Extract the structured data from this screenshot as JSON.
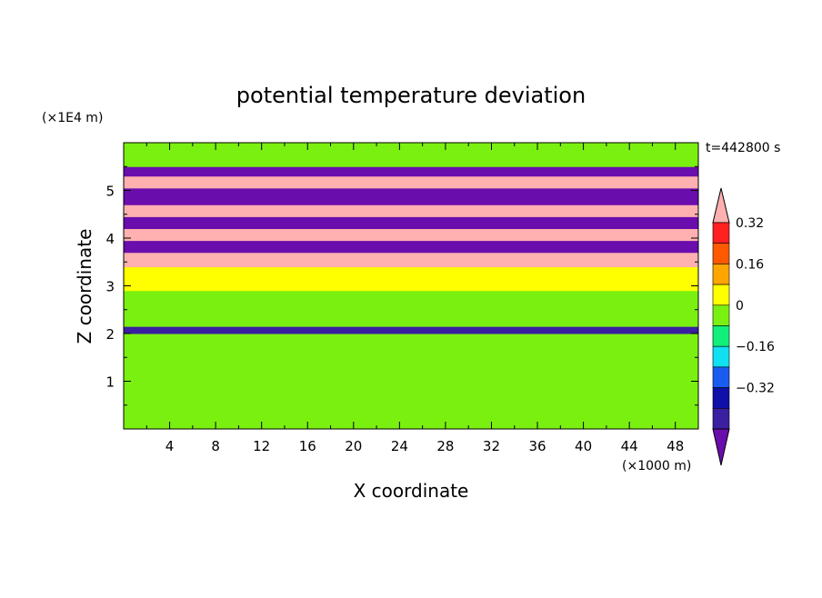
{
  "chart_data": {
    "type": "heatmap",
    "title": "potential temperature deviation",
    "time_label": "t=442800 s",
    "xlabel": "X coordinate",
    "x_unit": "(×1000 m)",
    "ylabel": "Z coordinate",
    "y_unit": "(×1E4 m)",
    "xlim": [
      0,
      50
    ],
    "ylim": [
      0,
      6
    ],
    "x_ticks": [
      "4",
      "8",
      "12",
      "16",
      "20",
      "24",
      "28",
      "32",
      "36",
      "40",
      "44",
      "48"
    ],
    "y_ticks": [
      "1",
      "2",
      "3",
      "4",
      "5"
    ],
    "colorbar": {
      "levels": [
        -0.4,
        -0.32,
        -0.24,
        -0.16,
        -0.08,
        0,
        0.08,
        0.16,
        0.24,
        0.32,
        0.4
      ],
      "tick_labels": [
        "0.32",
        "0.16",
        "0",
        "−0.16",
        "−0.32"
      ],
      "colors": [
        "#6a0dad",
        "#3a1fa0",
        "#1010a8",
        "#1a5cf0",
        "#10e0f0",
        "#10f07a",
        "#7af010",
        "#ffff00",
        "#ffa500",
        "#ff5a00",
        "#ff2020",
        "#ffb0b0"
      ]
    },
    "bands": [
      {
        "z": [
          0.0,
          1.4
        ],
        "value": 0.04
      },
      {
        "z": [
          1.4,
          2.0
        ],
        "value": 0.02
      },
      {
        "z": [
          2.0,
          2.15
        ],
        "value": -0.36
      },
      {
        "z": [
          2.15,
          2.9
        ],
        "value": 0.06
      },
      {
        "z": [
          2.9,
          3.4
        ],
        "value": 0.08
      },
      {
        "z": [
          3.4,
          3.7
        ],
        "value": 0.45
      },
      {
        "z": [
          3.7,
          3.95
        ],
        "value": -0.45
      },
      {
        "z": [
          3.95,
          4.2
        ],
        "value": 0.45
      },
      {
        "z": [
          4.2,
          4.45
        ],
        "value": -0.45
      },
      {
        "z": [
          4.45,
          4.7
        ],
        "value": 0.45
      },
      {
        "z": [
          4.7,
          5.05
        ],
        "value": -0.45
      },
      {
        "z": [
          5.05,
          5.3
        ],
        "value": 0.45
      },
      {
        "z": [
          5.3,
          5.5
        ],
        "value": -0.45
      },
      {
        "z": [
          5.5,
          6.0
        ],
        "value": 0.04
      }
    ]
  }
}
